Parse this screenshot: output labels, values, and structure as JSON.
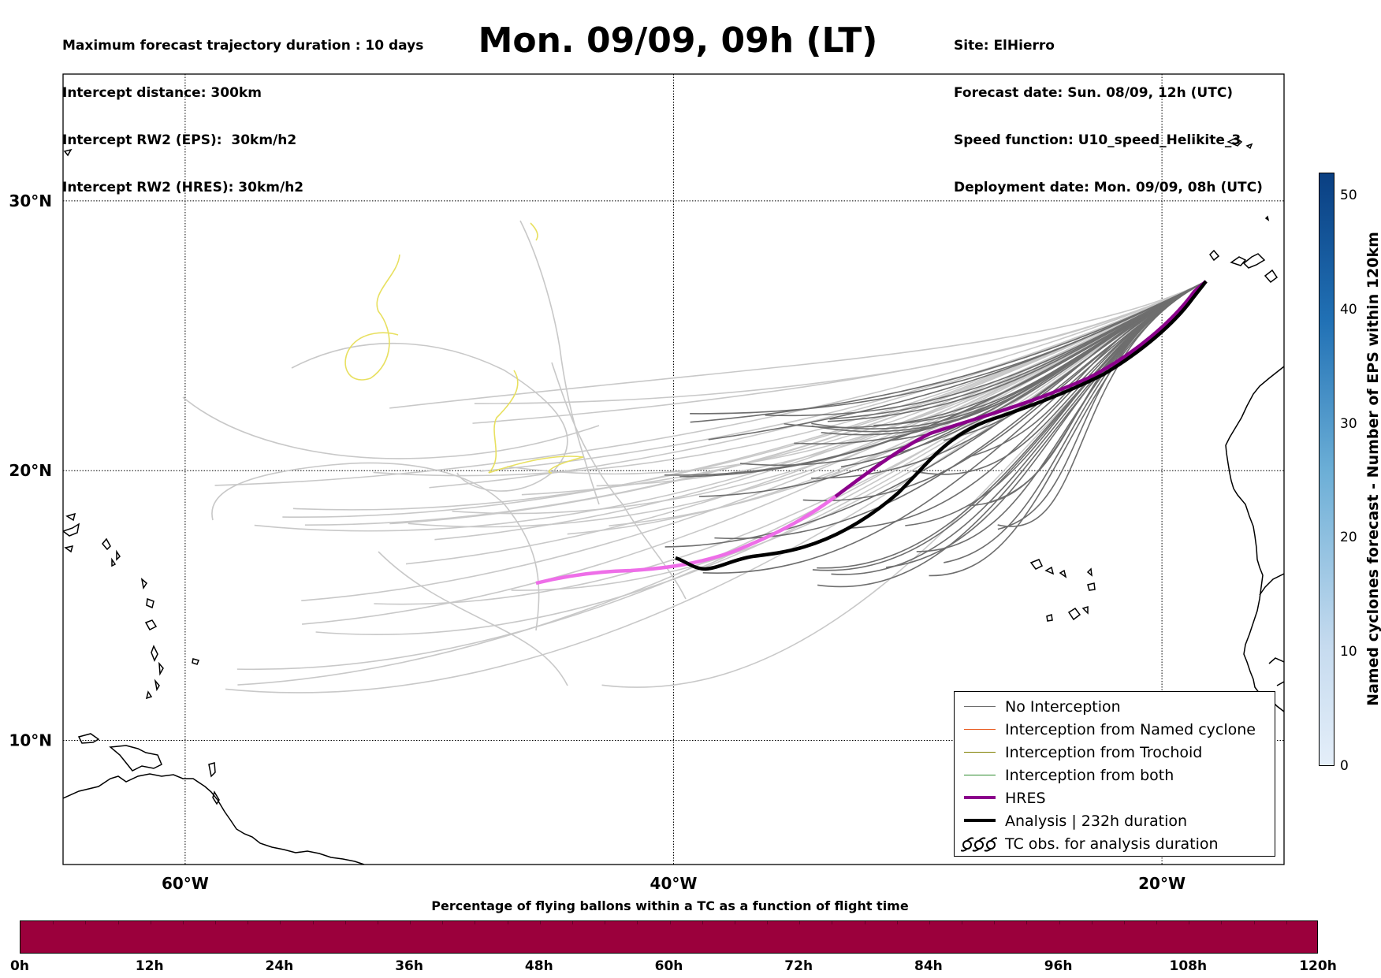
{
  "header_left": [
    "Maximum forecast trajectory duration : 10 days",
    "Intercept distance: 300km",
    "Intercept RW2 (EPS):  30km/h2",
    "Intercept RW2 (HRES): 30km/h2"
  ],
  "title": "Mon. 09/09, 09h (LT)",
  "header_right": [
    "Site: ElHierro",
    "Forecast date: Sun. 08/09, 12h (UTC)",
    "Speed function: U10_speed_Helikite_3",
    "Deployment date: Mon. 09/09, 08h (UTC)"
  ],
  "map": {
    "lon_range": [
      -65,
      -15
    ],
    "lat_range": [
      5.4,
      34.7
    ],
    "lat_ticks": [
      {
        "value": 30,
        "label": "30°N"
      },
      {
        "value": 20,
        "label": "20°N"
      },
      {
        "value": 10,
        "label": "10°N"
      }
    ],
    "lon_ticks": [
      {
        "value": -60,
        "label": "60°W"
      },
      {
        "value": -40,
        "label": "40°W"
      },
      {
        "value": -20,
        "label": "20°W"
      }
    ],
    "gridlines": "dotted"
  },
  "legend": {
    "entries": [
      {
        "label": "No Interception",
        "color": "#6e6e6e"
      },
      {
        "label": "Interception from Named cyclone",
        "color": "#e8581c"
      },
      {
        "label": "Interception from Trochoid",
        "color": "#808000"
      },
      {
        "label": "Interception from both",
        "color": "#2e8b2e"
      },
      {
        "label": "HRES",
        "color": "#8b008b"
      },
      {
        "label": "Analysis | 232h duration",
        "color": "#000000"
      },
      {
        "label": "TC obs. for analysis duration",
        "color": "#000000",
        "icon": "cyclone-symbol-icon"
      }
    ]
  },
  "colorbar_bottom": {
    "title": "Percentage of flying ballons within a TC as a function of flight time",
    "color": "#9b003c",
    "labels": [
      "0h",
      "12h",
      "24h",
      "36h",
      "48h",
      "60h",
      "72h",
      "84h",
      "96h",
      "108h",
      "120h"
    ]
  },
  "colorbar_right": {
    "title": "Named cyclones forecast - Number of EPS within 120km",
    "range": [
      0,
      52
    ],
    "labels": [
      "0",
      "10",
      "20",
      "30",
      "40",
      "50"
    ],
    "color_low": "#e4eef9",
    "color_high": "#0a3f82"
  },
  "colors": {
    "eps_track": "#6e6e6e",
    "eps_track_light": "#c8c8c8",
    "trochoid": "#e8e060",
    "hres_early": "#ee6ee8",
    "hres": "#8b008b",
    "analysis": "#000000"
  }
}
